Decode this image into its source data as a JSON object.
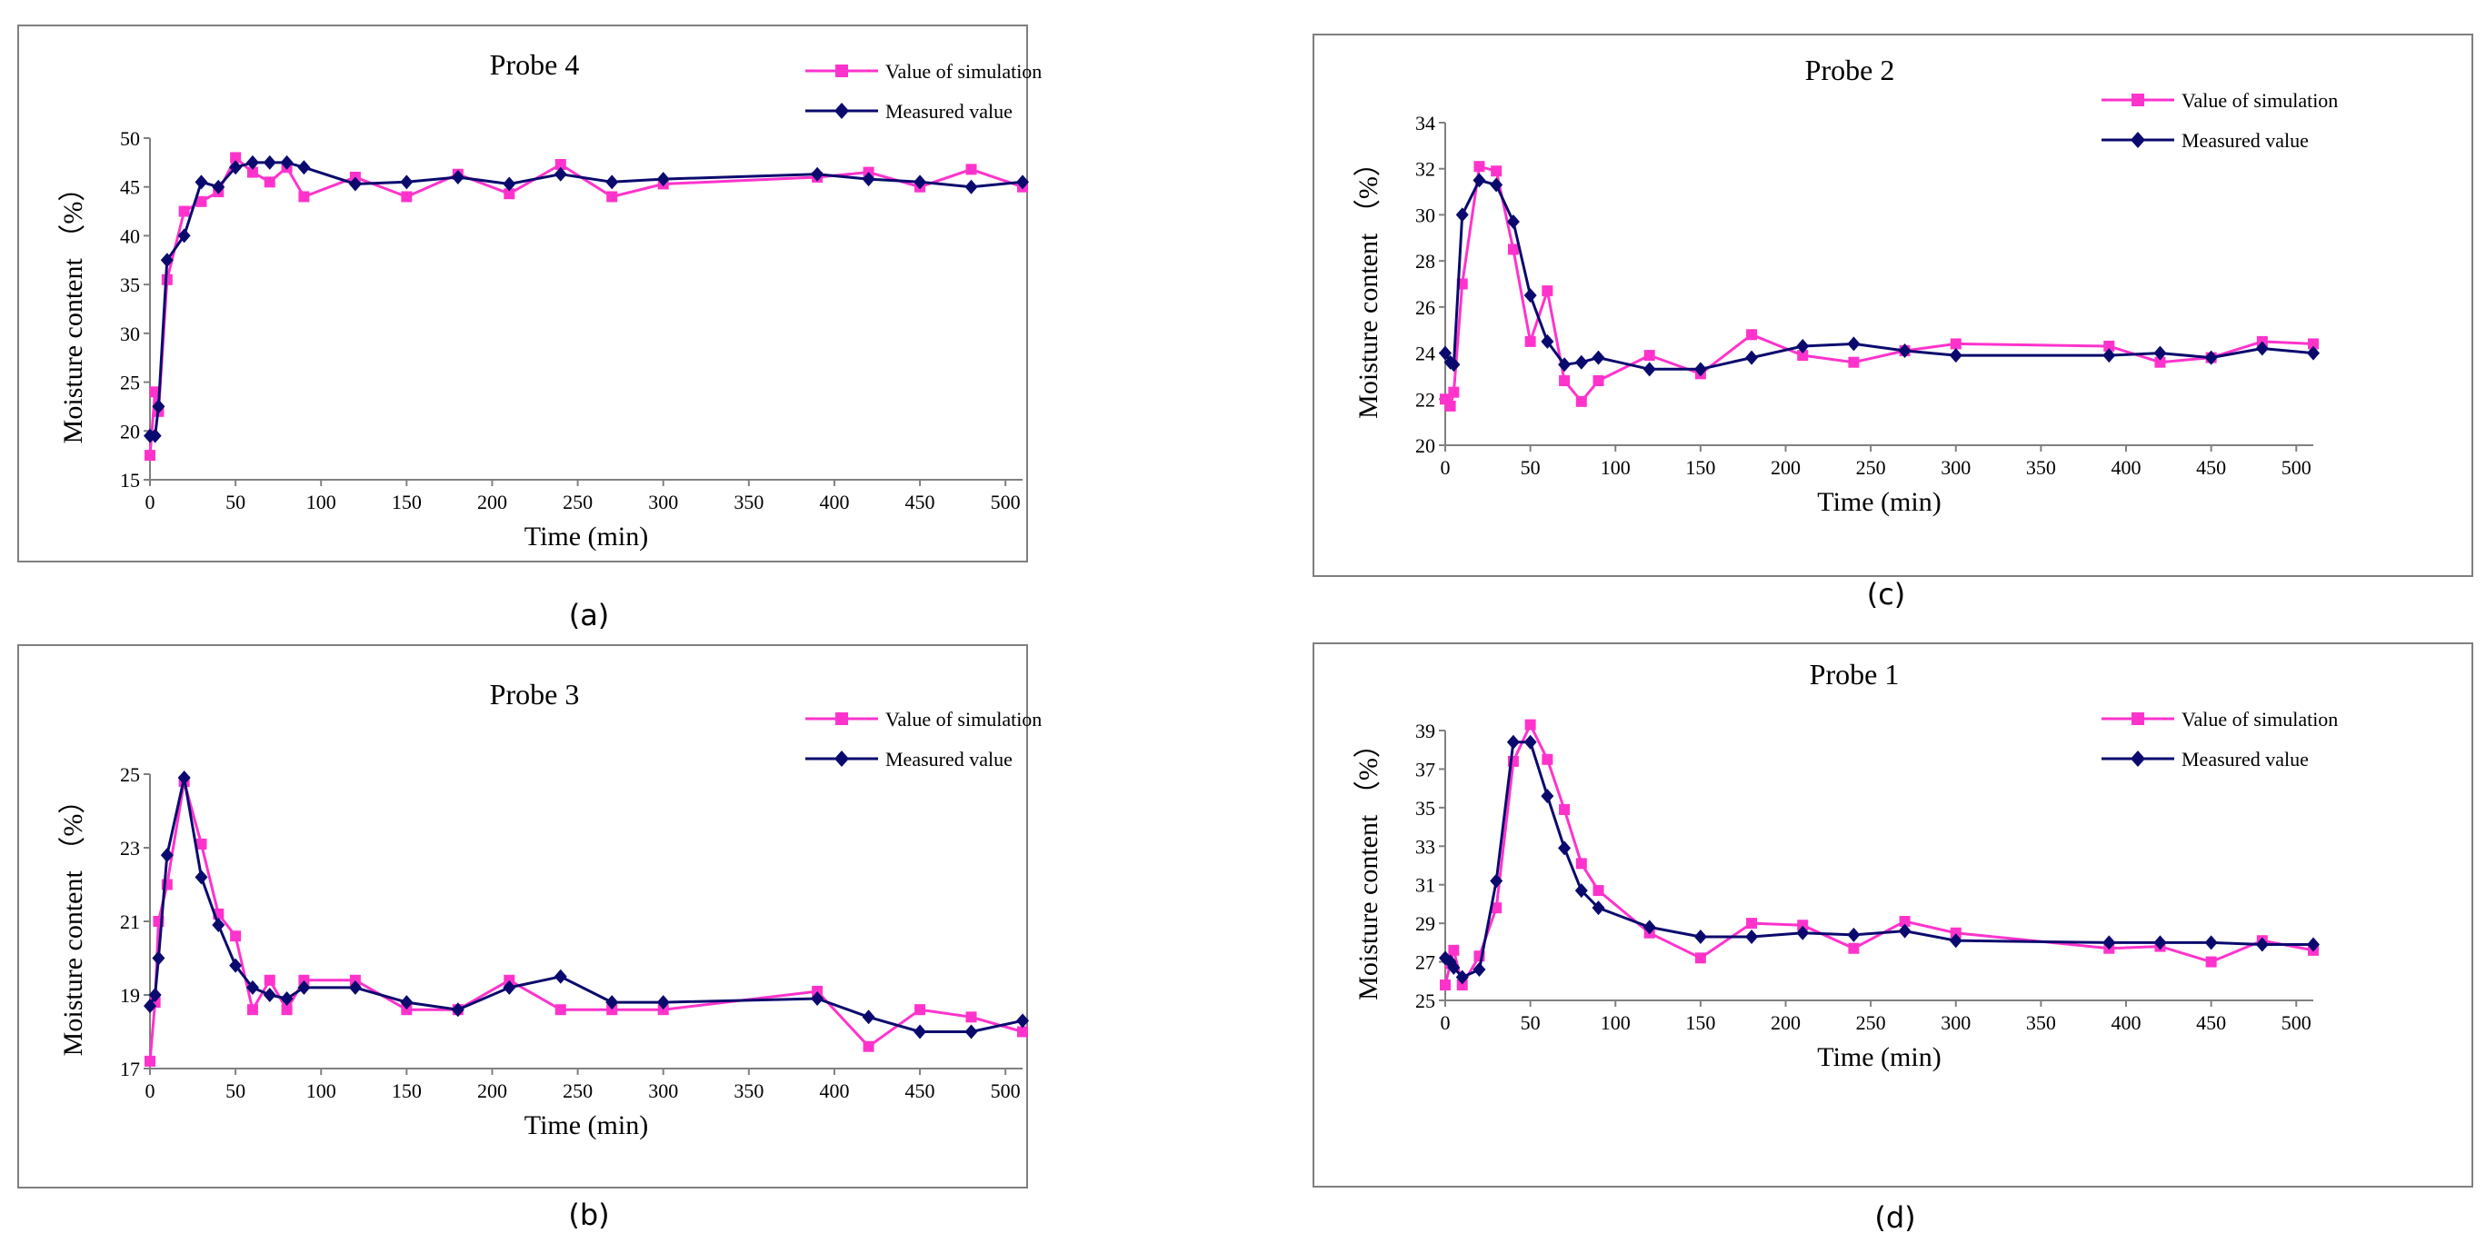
{
  "colors": {
    "simulation": "#ff33cc",
    "measured": "#0a0a6e"
  },
  "chart_data": [
    {
      "type": "line",
      "caption": "(a)",
      "title": "Probe 4",
      "xlabel": "Time (min)",
      "ylabel": "Moisture content （%）",
      "xlim": [
        0,
        510
      ],
      "ylim": [
        15,
        50
      ],
      "xticks": [
        0,
        50,
        100,
        150,
        200,
        250,
        300,
        350,
        400,
        450,
        500
      ],
      "yticks": [
        15,
        20,
        25,
        30,
        35,
        40,
        45,
        50
      ],
      "legend": {
        "position": "top-right"
      },
      "series": [
        {
          "name": "Value of simulation",
          "marker": "square",
          "color_key": "simulation",
          "x": [
            0,
            3,
            5,
            10,
            20,
            30,
            40,
            50,
            60,
            70,
            80,
            90,
            120,
            150,
            180,
            210,
            240,
            270,
            300,
            390,
            420,
            450,
            480,
            510
          ],
          "y": [
            17.5,
            24,
            22,
            35.5,
            42.5,
            43.5,
            44.5,
            48,
            46.5,
            45.5,
            47,
            44,
            46,
            44,
            46.3,
            44.3,
            47.3,
            44,
            45.3,
            46,
            46.5,
            45,
            46.8,
            45
          ]
        },
        {
          "name": "Measured value",
          "marker": "diamond",
          "color_key": "measured",
          "x": [
            0,
            3,
            5,
            10,
            20,
            30,
            40,
            50,
            60,
            70,
            80,
            90,
            120,
            150,
            180,
            210,
            240,
            270,
            300,
            390,
            420,
            450,
            480,
            510
          ],
          "y": [
            19.5,
            19.5,
            22.5,
            37.5,
            40,
            45.5,
            45,
            47,
            47.5,
            47.5,
            47.5,
            47,
            45.3,
            45.5,
            46,
            45.3,
            46.3,
            45.5,
            45.8,
            46.3,
            45.8,
            45.5,
            45,
            45.5
          ]
        }
      ]
    },
    {
      "type": "line",
      "caption": "(b)",
      "title": "Probe 3",
      "xlabel": "Time (min)",
      "ylabel": "Moisture content （%）",
      "xlim": [
        0,
        510
      ],
      "ylim": [
        17,
        25
      ],
      "xticks": [
        0,
        50,
        100,
        150,
        200,
        250,
        300,
        350,
        400,
        450,
        500
      ],
      "yticks": [
        17,
        19,
        21,
        23,
        25
      ],
      "legend": {
        "position": "top-right"
      },
      "series": [
        {
          "name": "Value of simulation",
          "marker": "square",
          "color_key": "simulation",
          "x": [
            0,
            3,
            5,
            10,
            20,
            30,
            40,
            50,
            60,
            70,
            80,
            90,
            120,
            150,
            180,
            210,
            240,
            270,
            300,
            390,
            420,
            450,
            480,
            510
          ],
          "y": [
            17.2,
            18.8,
            21,
            22,
            24.8,
            23.1,
            21.2,
            20.6,
            18.6,
            19.4,
            18.6,
            19.4,
            19.4,
            18.6,
            18.6,
            19.4,
            18.6,
            18.6,
            18.6,
            19.1,
            17.6,
            18.6,
            18.4,
            18
          ]
        },
        {
          "name": "Measured value",
          "marker": "diamond",
          "color_key": "measured",
          "x": [
            0,
            3,
            5,
            10,
            20,
            30,
            40,
            50,
            60,
            70,
            80,
            90,
            120,
            150,
            180,
            210,
            240,
            270,
            300,
            390,
            420,
            450,
            480,
            510
          ],
          "y": [
            18.7,
            19,
            20,
            22.8,
            24.9,
            22.2,
            20.9,
            19.8,
            19.2,
            19,
            18.9,
            19.2,
            19.2,
            18.8,
            18.6,
            19.2,
            19.5,
            18.8,
            18.8,
            18.9,
            18.4,
            18,
            18,
            18.3
          ]
        }
      ]
    },
    {
      "type": "line",
      "caption": "(c)",
      "title": "Probe 2",
      "xlabel": "Time (min)",
      "ylabel": "Moisture content （%）",
      "xlim": [
        0,
        510
      ],
      "ylim": [
        20,
        34
      ],
      "xticks": [
        0,
        50,
        100,
        150,
        200,
        250,
        300,
        350,
        400,
        450,
        500
      ],
      "yticks": [
        20,
        22,
        24,
        26,
        28,
        30,
        32,
        34
      ],
      "legend": {
        "position": "top-right"
      },
      "series": [
        {
          "name": "Value of simulation",
          "marker": "square",
          "color_key": "simulation",
          "x": [
            0,
            3,
            5,
            10,
            20,
            30,
            40,
            50,
            60,
            70,
            80,
            90,
            120,
            150,
            180,
            210,
            240,
            270,
            300,
            390,
            420,
            450,
            480,
            510
          ],
          "y": [
            22,
            21.7,
            22.3,
            27,
            32.1,
            31.9,
            28.5,
            24.5,
            26.7,
            22.8,
            21.9,
            22.8,
            23.9,
            23.1,
            24.8,
            23.9,
            23.6,
            24.1,
            24.4,
            24.3,
            23.6,
            23.8,
            24.5,
            24.4
          ]
        },
        {
          "name": "Measured value",
          "marker": "diamond",
          "color_key": "measured",
          "x": [
            0,
            3,
            5,
            10,
            20,
            30,
            40,
            50,
            60,
            70,
            80,
            90,
            120,
            150,
            180,
            210,
            240,
            270,
            300,
            390,
            420,
            450,
            480,
            510
          ],
          "y": [
            24,
            23.6,
            23.5,
            30,
            31.5,
            31.3,
            29.7,
            26.5,
            24.5,
            23.5,
            23.6,
            23.8,
            23.3,
            23.3,
            23.8,
            24.3,
            24.4,
            24.1,
            23.9,
            23.9,
            24,
            23.8,
            24.2,
            24
          ]
        }
      ]
    },
    {
      "type": "line",
      "caption": "(d)",
      "title": "Probe 1",
      "xlabel": "Time (min)",
      "ylabel": "Moisture content （%）",
      "xlim": [
        0,
        510
      ],
      "ylim": [
        25,
        39
      ],
      "xticks": [
        0,
        50,
        100,
        150,
        200,
        250,
        300,
        350,
        400,
        450,
        500
      ],
      "yticks": [
        25,
        27,
        29,
        31,
        33,
        35,
        37,
        39
      ],
      "legend": {
        "position": "top-right"
      },
      "series": [
        {
          "name": "Value of simulation",
          "marker": "square",
          "color_key": "simulation",
          "x": [
            0,
            3,
            5,
            10,
            20,
            30,
            40,
            50,
            60,
            70,
            80,
            90,
            120,
            150,
            180,
            210,
            240,
            270,
            300,
            390,
            420,
            450,
            480,
            510
          ],
          "y": [
            25.8,
            26.9,
            27.6,
            25.8,
            27.3,
            29.8,
            37.4,
            39.3,
            37.5,
            34.9,
            32.1,
            30.7,
            28.5,
            27.2,
            29,
            28.9,
            27.7,
            29.1,
            28.5,
            27.7,
            27.8,
            27,
            28.1,
            27.6
          ]
        },
        {
          "name": "Measured value",
          "marker": "diamond",
          "color_key": "measured",
          "x": [
            0,
            3,
            5,
            10,
            20,
            30,
            40,
            50,
            60,
            70,
            80,
            90,
            120,
            150,
            180,
            210,
            240,
            270,
            300,
            390,
            420,
            450,
            480,
            510
          ],
          "y": [
            27.2,
            27,
            26.7,
            26.2,
            26.6,
            31.2,
            38.4,
            38.4,
            35.6,
            32.9,
            30.7,
            29.8,
            28.8,
            28.3,
            28.3,
            28.5,
            28.4,
            28.6,
            28.1,
            28,
            28,
            28,
            27.9,
            27.9
          ]
        }
      ]
    }
  ]
}
